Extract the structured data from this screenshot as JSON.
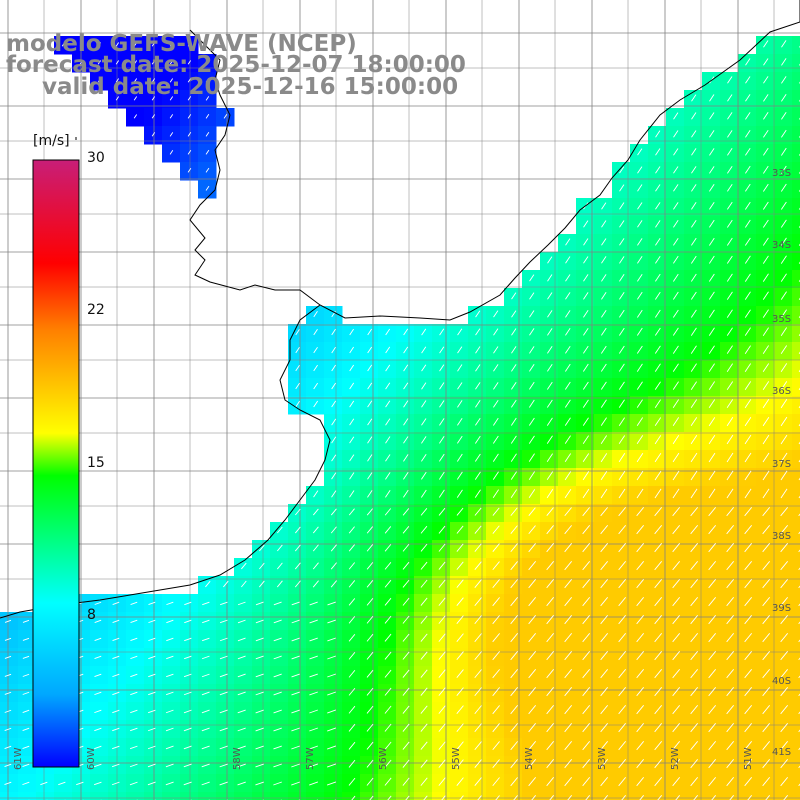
{
  "title": {
    "model": "modelo GEFS-WAVE (NCEP)",
    "forecast": "forecast date: 2025-12-07 18:00:00",
    "valid": "valid date: 2025-12-16 15:00:00"
  },
  "colorbar": {
    "unit": "[m/s]",
    "tick_labels": [
      "30",
      "22",
      "15",
      "8"
    ],
    "tick_values": [
      30,
      22,
      15,
      8
    ],
    "range": [
      0,
      30
    ],
    "colors": [
      "#0000ff",
      "#00a8ff",
      "#00ffff",
      "#00ff00",
      "#ffff00",
      "#ff8000",
      "#ff0000",
      "#c81e78"
    ]
  },
  "lat_labels": [
    "33S",
    "34S",
    "35S",
    "36S",
    "37S",
    "38S",
    "39S",
    "40S",
    "41S"
  ],
  "lon_labels": [
    "61W",
    "60W",
    "58W",
    "57W",
    "56W",
    "55W",
    "54W",
    "53W",
    "52W",
    "51W"
  ],
  "wind_field": {
    "description_free": true,
    "colors": {
      "land": "#ffffff",
      "coast": "#000000",
      "grid": "#808080",
      "arrow": "#ffffff"
    }
  }
}
